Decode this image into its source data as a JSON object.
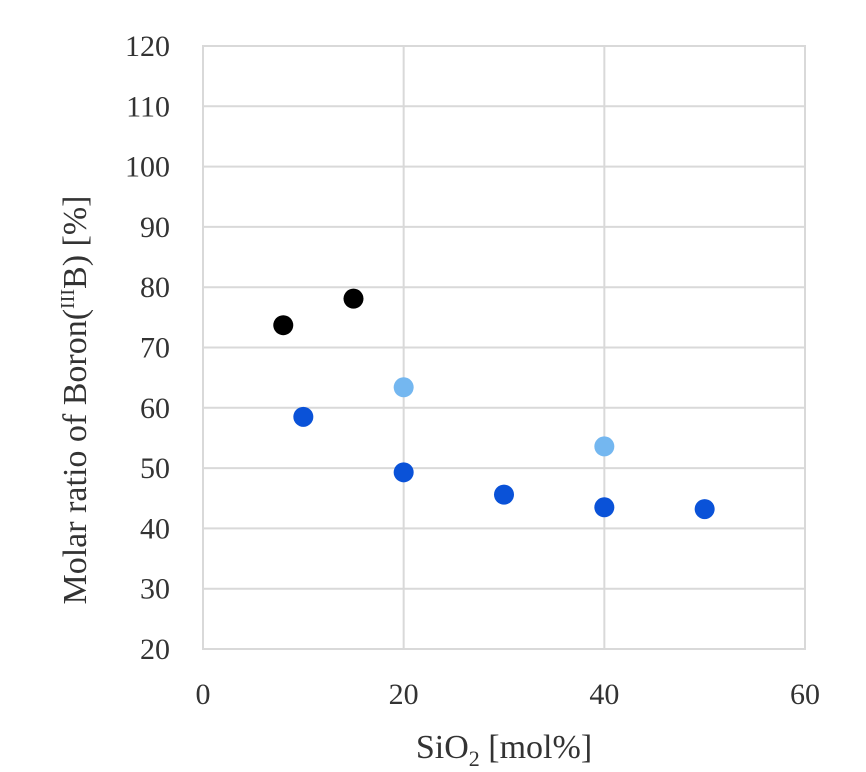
{
  "chart_data": {
    "type": "scatter",
    "title": "",
    "xlabel": {
      "base": "SiO",
      "subscript": "2",
      "suffix": " [mol%]"
    },
    "ylabel": {
      "prefix": "Molar ratio of Boron(",
      "superscript": "III",
      "suffix": "B) [%]"
    },
    "xlim": [
      0,
      60
    ],
    "ylim": [
      20,
      120
    ],
    "x_ticks": [
      0,
      20,
      40,
      60
    ],
    "y_ticks": [
      20,
      30,
      40,
      50,
      60,
      70,
      80,
      90,
      100,
      110,
      120
    ],
    "grid": true,
    "legend": "none",
    "series": [
      {
        "color": "#000000",
        "points": [
          {
            "x": 8,
            "y": 73.7
          },
          {
            "x": 15,
            "y": 78.1
          }
        ]
      },
      {
        "color": "#0a52d8",
        "points": [
          {
            "x": 10,
            "y": 58.5
          },
          {
            "x": 20,
            "y": 49.3
          },
          {
            "x": 30,
            "y": 45.6
          },
          {
            "x": 40,
            "y": 43.5
          },
          {
            "x": 50,
            "y": 43.2
          }
        ]
      },
      {
        "color": "#74b7f0",
        "points": [
          {
            "x": 20,
            "y": 63.4
          },
          {
            "x": 40,
            "y": 53.6
          }
        ]
      }
    ]
  }
}
